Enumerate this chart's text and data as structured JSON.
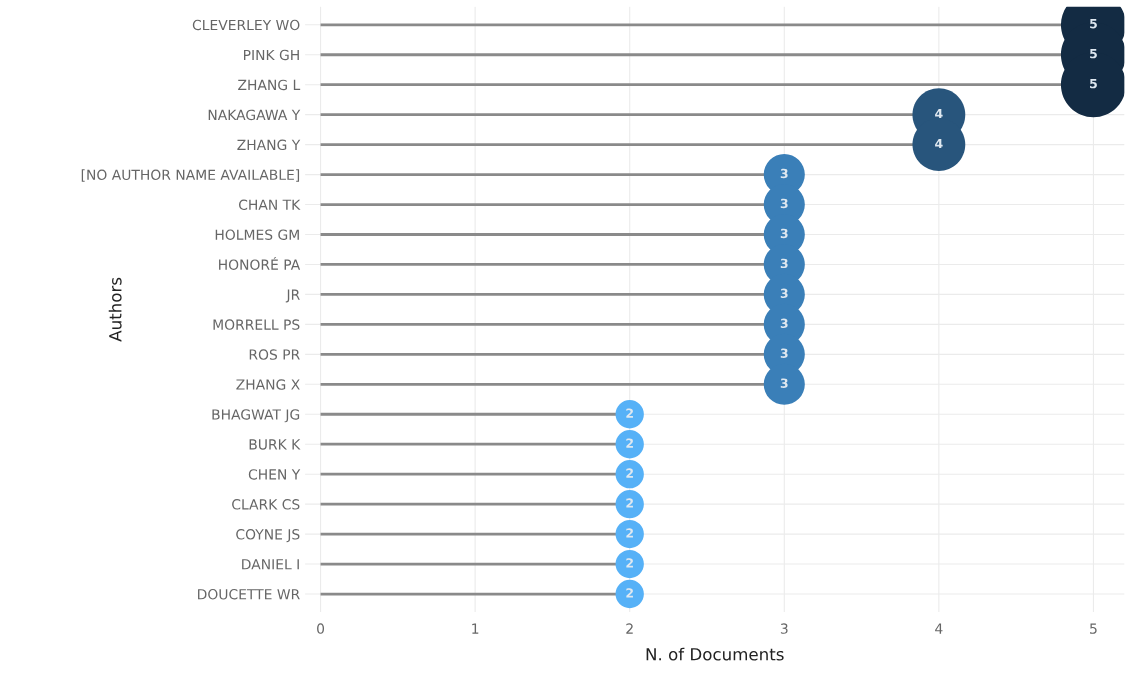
{
  "chart_data": {
    "type": "lollipop",
    "orientation": "horizontal",
    "xlabel": "N. of Documents",
    "ylabel": "Authors",
    "categories": [
      "CLEVERLEY WO",
      "PINK GH",
      "ZHANG L",
      "NAKAGAWA Y",
      "ZHANG Y",
      "[NO AUTHOR NAME AVAILABLE]",
      "CHAN TK",
      "HOLMES GM",
      "HONORÉ PA",
      "JR",
      "MORRELL PS",
      "ROS PR",
      "ZHANG X",
      "BHAGWAT JG",
      "BURK K",
      "CHEN Y",
      "CLARK CS",
      "COYNE JS",
      "DANIEL I",
      "DOUCETTE WR"
    ],
    "values": [
      5,
      5,
      5,
      4,
      4,
      3,
      3,
      3,
      3,
      3,
      3,
      3,
      3,
      2,
      2,
      2,
      2,
      2,
      2,
      2
    ],
    "colors": [
      "#132b43",
      "#132b43",
      "#132b43",
      "#28557c",
      "#28557c",
      "#3a7fb8",
      "#3a7fb8",
      "#3a7fb8",
      "#3a7fb8",
      "#3a7fb8",
      "#3a7fb8",
      "#3a7fb8",
      "#3a7fb8",
      "#56b1f7",
      "#56b1f7",
      "#56b1f7",
      "#56b1f7",
      "#56b1f7",
      "#56b1f7",
      "#56b1f7"
    ],
    "sizes": [
      1,
      1,
      1,
      0.66,
      0.66,
      0.4,
      0.4,
      0.4,
      0.4,
      0.4,
      0.4,
      0.4,
      0.4,
      0.19,
      0.19,
      0.19,
      0.19,
      0.19,
      0.19,
      0.19
    ],
    "xlim": [
      -0.1,
      5.2
    ],
    "xticks": [
      0,
      1,
      2,
      3,
      4,
      5
    ],
    "grid": true,
    "data_labels": true,
    "marker": "circle"
  }
}
